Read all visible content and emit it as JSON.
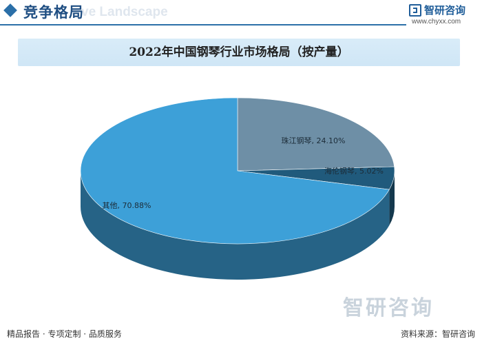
{
  "header": {
    "section_title": "竞争格局",
    "section_subtitle": "ve Landscape",
    "logo_name": "智研咨询",
    "logo_url": "www.chyxx.com"
  },
  "footer": {
    "left_text": "精品报告 · 专项定制 · 品质服务",
    "right_text": "资料来源：智研咨询",
    "watermark": "智研咨询"
  },
  "chart_data": {
    "type": "pie",
    "title": "2022年中国钢琴行业市场格局（按产量）",
    "slices": [
      {
        "label": "珠江钢琴",
        "value": 24.1,
        "display": "珠江钢琴, 24.10%"
      },
      {
        "label": "海伦钢琴",
        "value": 5.02,
        "display": "海伦钢琴, 5.02%"
      },
      {
        "label": "其他",
        "value": 70.88,
        "display": "其他, 70.88%"
      }
    ],
    "colors": {
      "珠江钢琴": "#6e8fa6",
      "海伦钢琴": "#205a7c",
      "其他": "#3da0d8"
    },
    "three_d": true,
    "legend": "none"
  }
}
